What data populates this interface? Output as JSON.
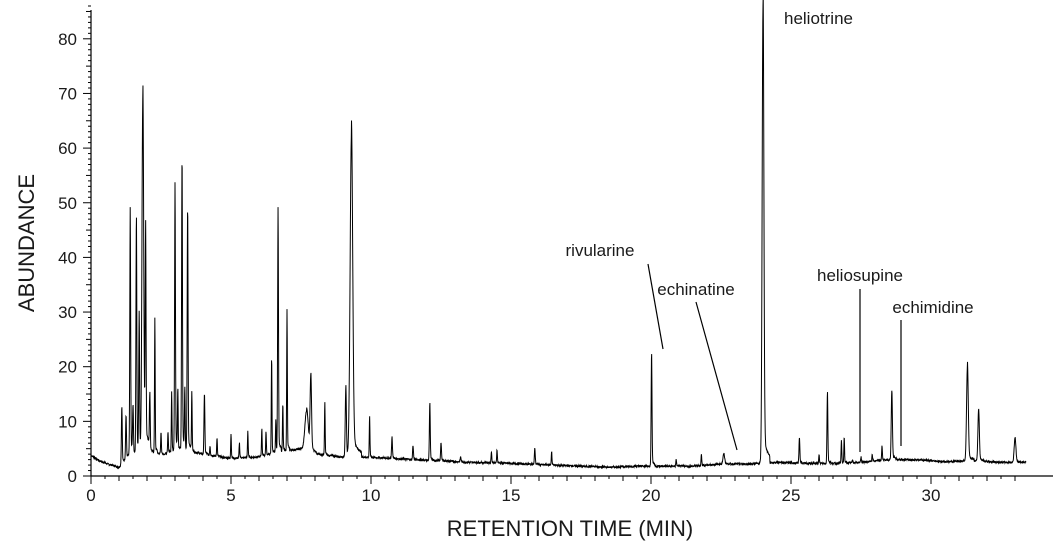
{
  "chart_data": {
    "type": "line",
    "title": "",
    "xlabel": "RETENTION TIME (MIN)",
    "ylabel": "ABUNDANCE",
    "xlim": [
      0,
      33.4
    ],
    "ylim": [
      0,
      86
    ],
    "xticks": [
      0,
      5,
      10,
      15,
      20,
      25,
      30
    ],
    "yticks": [
      0,
      10,
      20,
      30,
      40,
      50,
      60,
      70,
      80
    ],
    "grid": false,
    "legend": "none",
    "line_color": "#000000",
    "baseline": [
      [
        0,
        3.8
      ],
      [
        0.3,
        2.8
      ],
      [
        0.6,
        2.2
      ],
      [
        1.0,
        1.6
      ],
      [
        1.4,
        4
      ],
      [
        2.0,
        4.5
      ],
      [
        2.6,
        4
      ],
      [
        3.2,
        5
      ],
      [
        4.0,
        4
      ],
      [
        5.0,
        3.2
      ],
      [
        6.0,
        3.5
      ],
      [
        6.8,
        4.5
      ],
      [
        7.5,
        5
      ],
      [
        8.0,
        4
      ],
      [
        9.0,
        3.5
      ],
      [
        9.6,
        3.5
      ],
      [
        10.5,
        3.3
      ],
      [
        11.5,
        3
      ],
      [
        12.5,
        2.8
      ],
      [
        13.5,
        2.5
      ],
      [
        14.5,
        2.4
      ],
      [
        15.5,
        2.2
      ],
      [
        16.5,
        2
      ],
      [
        17.5,
        1.8
      ],
      [
        18.5,
        1.6
      ],
      [
        19.5,
        1.8
      ],
      [
        20.5,
        1.8
      ],
      [
        21.5,
        1.8
      ],
      [
        22.5,
        2.2
      ],
      [
        23.5,
        2.2
      ],
      [
        24.5,
        2.5
      ],
      [
        25.5,
        2.3
      ],
      [
        26.5,
        2.3
      ],
      [
        27.5,
        2.5
      ],
      [
        28.5,
        3
      ],
      [
        29.5,
        3
      ],
      [
        30.5,
        2.6
      ],
      [
        31.5,
        2.8
      ],
      [
        32.5,
        2.5
      ],
      [
        33.4,
        2.5
      ]
    ],
    "peaks": [
      [
        1.1,
        12.5,
        0.015
      ],
      [
        1.25,
        11,
        0.015
      ],
      [
        1.4,
        46.5,
        0.015
      ],
      [
        1.5,
        12,
        0.015
      ],
      [
        1.62,
        46.5,
        0.015
      ],
      [
        1.72,
        28,
        0.015
      ],
      [
        1.85,
        69,
        0.03
      ],
      [
        1.95,
        42.5,
        0.015
      ],
      [
        2.1,
        15,
        0.015
      ],
      [
        2.28,
        27.5,
        0.012
      ],
      [
        2.5,
        8,
        0.012
      ],
      [
        2.75,
        8,
        0.012
      ],
      [
        2.88,
        15,
        0.012
      ],
      [
        3.0,
        51,
        0.015
      ],
      [
        3.1,
        15,
        0.012
      ],
      [
        3.25,
        57.5,
        0.015
      ],
      [
        3.35,
        15,
        0.012
      ],
      [
        3.45,
        48.5,
        0.015
      ],
      [
        3.6,
        15,
        0.012
      ],
      [
        4.05,
        15,
        0.015
      ],
      [
        4.25,
        5.5,
        0.012
      ],
      [
        4.5,
        7,
        0.012
      ],
      [
        5.0,
        7.5,
        0.012
      ],
      [
        5.3,
        6,
        0.012
      ],
      [
        5.6,
        8,
        0.012
      ],
      [
        6.1,
        8.5,
        0.012
      ],
      [
        6.25,
        8,
        0.012
      ],
      [
        6.45,
        21.5,
        0.012
      ],
      [
        6.6,
        10,
        0.012
      ],
      [
        6.68,
        46.5,
        0.015
      ],
      [
        6.85,
        13,
        0.012
      ],
      [
        7.0,
        29,
        0.012
      ],
      [
        7.7,
        12,
        0.06
      ],
      [
        7.85,
        18,
        0.025
      ],
      [
        8.35,
        13,
        0.012
      ],
      [
        9.1,
        16,
        0.02
      ],
      [
        9.3,
        62,
        0.045
      ],
      [
        9.95,
        10.5,
        0.012
      ],
      [
        10.75,
        7,
        0.015
      ],
      [
        11.5,
        5.5,
        0.015
      ],
      [
        12.1,
        13,
        0.015
      ],
      [
        12.5,
        6,
        0.015
      ],
      [
        13.2,
        3.5,
        0.015
      ],
      [
        14.3,
        4.5,
        0.012
      ],
      [
        14.5,
        4.8,
        0.012
      ],
      [
        15.85,
        5,
        0.015
      ],
      [
        16.45,
        4.5,
        0.012
      ],
      [
        20.02,
        22,
        0.015
      ],
      [
        20.9,
        3,
        0.012
      ],
      [
        21.8,
        4,
        0.012
      ],
      [
        22.6,
        4,
        0.03
      ],
      [
        24.0,
        86,
        0.03
      ],
      [
        25.3,
        7,
        0.015
      ],
      [
        26.0,
        4,
        0.012
      ],
      [
        26.3,
        15,
        0.015
      ],
      [
        26.8,
        6.5,
        0.012
      ],
      [
        26.9,
        7,
        0.012
      ],
      [
        27.2,
        3,
        0.012
      ],
      [
        27.5,
        3.5,
        0.012
      ],
      [
        27.9,
        4,
        0.012
      ],
      [
        28.25,
        5.5,
        0.012
      ],
      [
        28.6,
        15.5,
        0.02
      ],
      [
        31.3,
        20,
        0.03
      ],
      [
        31.7,
        12,
        0.025
      ],
      [
        33.0,
        7,
        0.03
      ]
    ],
    "annotations": [
      {
        "label": "heliotrine",
        "x": 24.0,
        "y": 86
      },
      {
        "label": "rivularine",
        "x": 20.02,
        "y": 22
      },
      {
        "label": "echinatine",
        "x": 22.6,
        "y": 4
      },
      {
        "label": "heliosupine",
        "x": 26.85,
        "y": 7
      },
      {
        "label": "echimidine",
        "x": 28.25,
        "y": 5.5
      }
    ]
  }
}
